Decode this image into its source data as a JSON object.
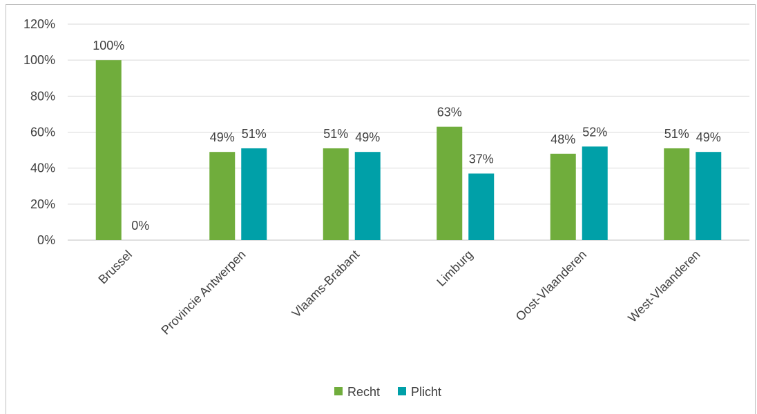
{
  "chart_data": {
    "type": "bar",
    "categories": [
      "Brussel",
      "Provincie Antwerpen",
      "Vlaams-Brabant",
      "Limburg",
      "Oost-Vlaanderen",
      "West-Vlaanderen"
    ],
    "series": [
      {
        "name": "Recht",
        "color": "#70ad3c",
        "values": [
          100,
          49,
          51,
          63,
          48,
          51
        ],
        "labels": [
          "100%",
          "49%",
          "51%",
          "63%",
          "48%",
          "51%"
        ]
      },
      {
        "name": "Plicht",
        "color": "#00a0a8",
        "values": [
          0,
          51,
          49,
          37,
          52,
          49
        ],
        "labels": [
          "0%",
          "51%",
          "49%",
          "37%",
          "52%",
          "49%"
        ]
      }
    ],
    "ylim": [
      0,
      120
    ],
    "yticks": [
      0,
      20,
      40,
      60,
      80,
      100,
      120
    ],
    "ytick_labels": [
      "0%",
      "20%",
      "40%",
      "60%",
      "80%",
      "100%",
      "120%"
    ],
    "grid": true,
    "legend_position": "bottom",
    "title": "",
    "xlabel": "",
    "ylabel": ""
  }
}
